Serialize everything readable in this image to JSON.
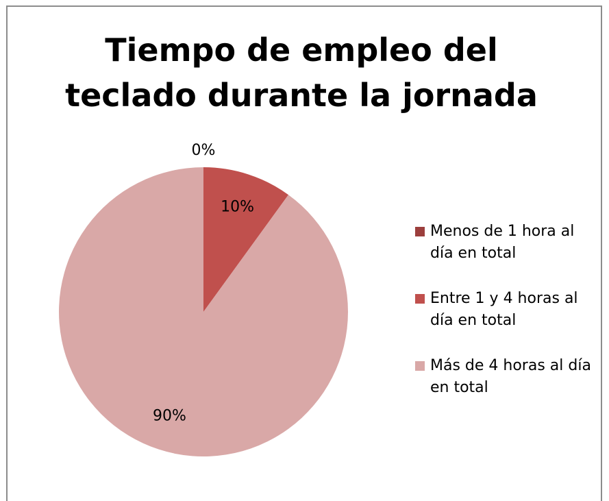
{
  "chart_data": {
    "type": "pie",
    "title": "Tiempo de empleo del teclado durante la jornada",
    "categories": [
      "Menos de 1 hora al día en total",
      "Entre 1 y 4 horas al día en total",
      "Más de 4 horas al día en total"
    ],
    "values": [
      0,
      10,
      90
    ],
    "value_labels": [
      "0%",
      "10%",
      "90%"
    ],
    "colors": [
      "#9c3f3d",
      "#c0504d",
      "#d9a8a7"
    ],
    "legend": "right"
  }
}
